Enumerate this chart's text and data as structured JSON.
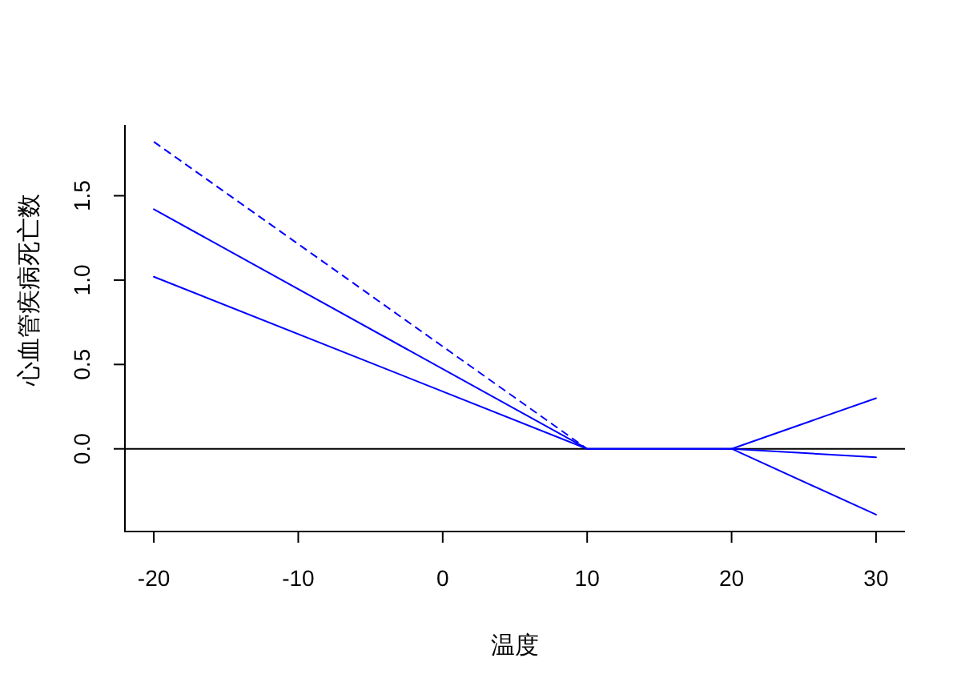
{
  "chart_data": {
    "type": "line",
    "xlabel": "温度",
    "ylabel": "心血管疾病死亡数",
    "xlim": [
      -22,
      32
    ],
    "ylim": [
      -0.49,
      1.92
    ],
    "xticks": [
      -20,
      -10,
      0,
      10,
      20,
      30
    ],
    "yticks": [
      {
        "value": 0,
        "label": "0.0"
      },
      {
        "value": 0.5,
        "label": "0.5"
      },
      {
        "value": 1,
        "label": "1.0"
      },
      {
        "value": 1.5,
        "label": "1.5"
      }
    ],
    "ref_lines": [
      {
        "axis": "y",
        "value": 0,
        "color": "#000000"
      }
    ],
    "series": [
      {
        "color": "#0000ff",
        "line_style": "dashed",
        "x": [
          -20,
          10
        ],
        "values": [
          1.82,
          0
        ]
      },
      {
        "color": "#0000ff",
        "line_style": "solid",
        "x": [
          -20,
          10,
          20,
          30
        ],
        "values": [
          1.42,
          0,
          0,
          -0.05
        ]
      },
      {
        "color": "#0000ff",
        "line_style": "solid",
        "x": [
          -20,
          10,
          20,
          30
        ],
        "values": [
          1.02,
          0,
          0,
          -0.39
        ]
      },
      {
        "color": "#0000ff",
        "line_style": "solid",
        "x": [
          20,
          30
        ],
        "values": [
          0,
          0.3
        ]
      }
    ]
  }
}
